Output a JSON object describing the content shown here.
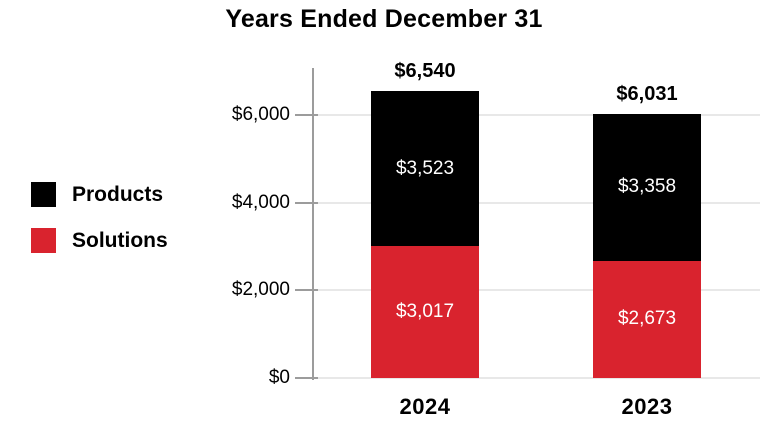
{
  "chart_data": {
    "type": "bar",
    "stacked": true,
    "title": "Years Ended December 31",
    "categories": [
      "2024",
      "2023"
    ],
    "series": [
      {
        "name": "Products",
        "color": "#000000",
        "values": [
          3523,
          3358
        ],
        "data_labels": [
          "$3,523",
          "$3,358"
        ],
        "label_color": "#FFFFFF"
      },
      {
        "name": "Solutions",
        "color": "#D9232E",
        "values": [
          3017,
          2673
        ],
        "data_labels": [
          "$3,017",
          "$2,673"
        ],
        "label_color": "#FFFFFF"
      }
    ],
    "totals": {
      "values": [
        6540,
        6031
      ],
      "labels": [
        "$6,540",
        "$6,031"
      ]
    },
    "y_axis": {
      "tick_values": [
        0,
        2000,
        4000,
        6000
      ],
      "tick_labels": [
        "$0",
        "$2,000",
        "$4,000",
        "$6,000"
      ],
      "range": [
        0,
        6600
      ]
    },
    "legend": {
      "position": "left"
    },
    "grid": {
      "show": true,
      "color": "#E8E8E8"
    },
    "axis_color": "#9C9C9C",
    "background": "#FFFFFF"
  }
}
